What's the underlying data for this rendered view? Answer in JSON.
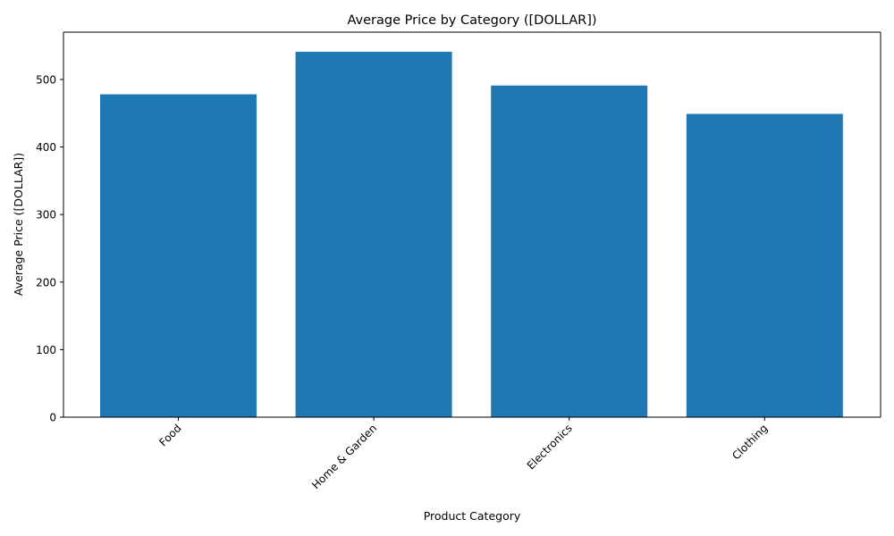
{
  "chart_data": {
    "type": "bar",
    "title": "Average Price by Category ([DOLLAR])",
    "xlabel": "Product Category",
    "ylabel": "Average Price ([DOLLAR])",
    "categories": [
      "Food",
      "Home & Garden",
      "Electronics",
      "Clothing"
    ],
    "values": [
      478,
      541,
      491,
      449
    ],
    "ylim": [
      0,
      570
    ],
    "yticks": [
      0,
      100,
      200,
      300,
      400,
      500
    ],
    "xtick_rotation_deg": 45,
    "grid": false,
    "legend": "none",
    "bar_color": "#1f77b4"
  }
}
